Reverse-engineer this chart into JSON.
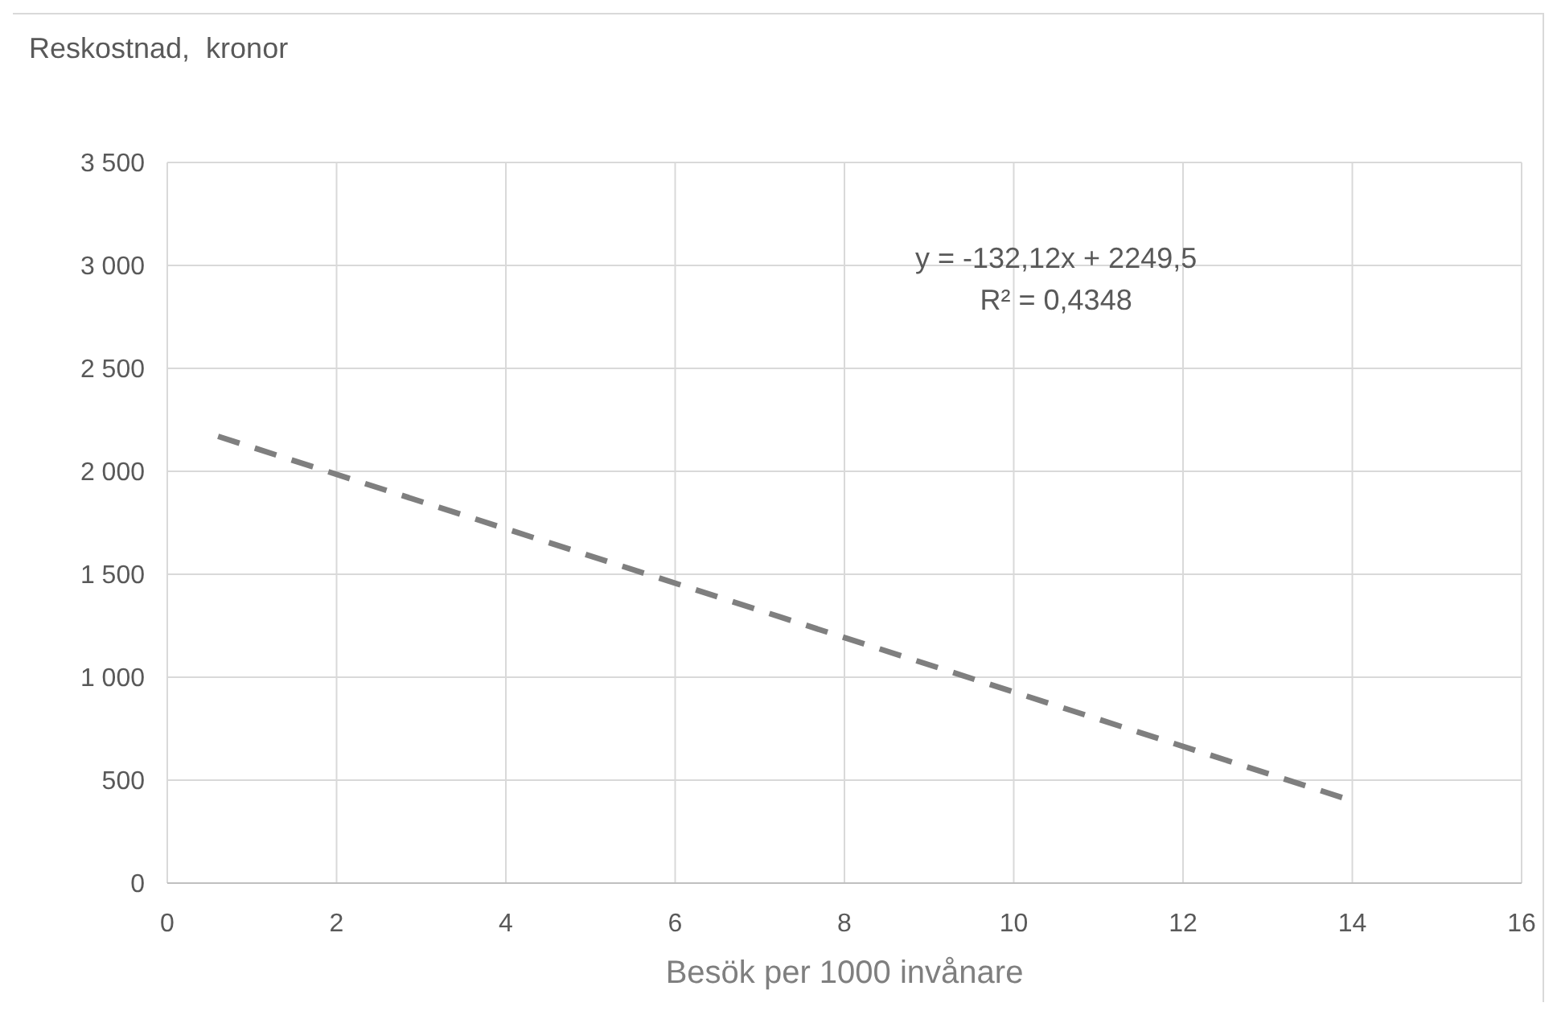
{
  "chart_data": {
    "type": "line",
    "ylabel": "Reskostnad,  kronor",
    "xlabel": "Besök per 1000 invånare",
    "series": [
      {
        "x": [
          0.6,
          13.9
        ],
        "values": [
          2170,
          413
        ],
        "color": "#7f7f7f",
        "line_style": "dashed",
        "marker": "none"
      }
    ],
    "xlim": [
      0,
      16
    ],
    "xticks": [
      0,
      2,
      4,
      6,
      8,
      10,
      12,
      14,
      16
    ],
    "ylim": [
      0,
      3500
    ],
    "yticks": [
      0,
      500,
      {
        "value": 1000,
        "label": "1 000"
      },
      {
        "value": 1500,
        "label": "1 500"
      },
      {
        "value": 2000,
        "label": "2 000"
      },
      {
        "value": 2500,
        "label": "2 500"
      },
      {
        "value": 3000,
        "label": "3 000"
      },
      {
        "value": 3500,
        "label": "3 500"
      }
    ],
    "grid": true,
    "annotations": [
      "y = -132,12x + 2249,5",
      "R² = 0,4348"
    ]
  }
}
